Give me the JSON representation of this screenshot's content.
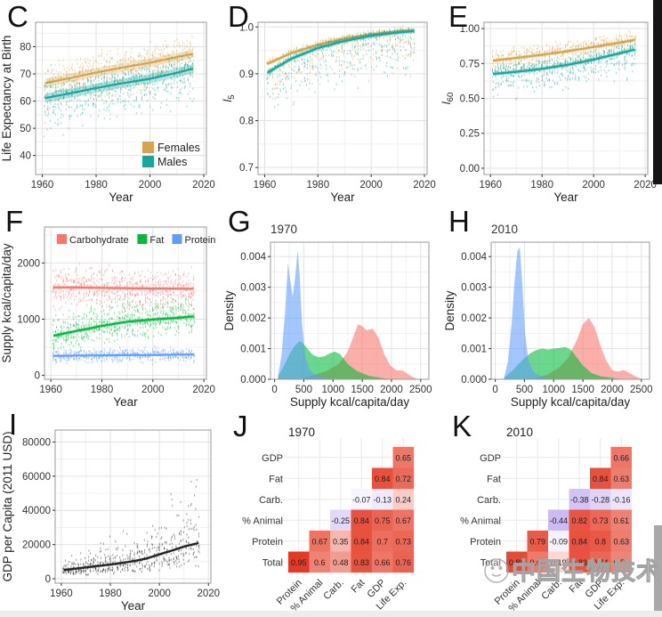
{
  "watermark": {
    "text": "中国生物技术网"
  },
  "chart_data": [
    {
      "panel": "C",
      "type": "trend",
      "xlabel": "Year",
      "ylabel": "Life Expectancy at Birth",
      "xlim": [
        1957.5,
        2021
      ],
      "ylim": [
        33,
        89
      ],
      "xticks": [
        [
          1960,
          "1960"
        ],
        [
          1980,
          "1980"
        ],
        [
          2000,
          "2000"
        ],
        [
          2020,
          "2020"
        ]
      ],
      "yticks": [
        [
          40,
          "40"
        ],
        [
          50,
          "50"
        ],
        [
          60,
          "60"
        ],
        [
          70,
          "70"
        ],
        [
          80,
          "80"
        ]
      ],
      "margin": {
        "l": 40,
        "r": 16,
        "t": 25,
        "b": 34
      },
      "ylx": 12,
      "series": [
        {
          "name": "Females",
          "color": "#d7a44a",
          "x": [
            1961,
            1970,
            1980,
            1990,
            2000,
            2010,
            2016
          ],
          "y": [
            66.6,
            68.4,
            70.5,
            72.4,
            74.1,
            76.2,
            77.4
          ],
          "ribbon": 1.6,
          "scatter": {
            "n": 11,
            "up": 9.5,
            "down": 16
          }
        },
        {
          "name": "Males",
          "color": "#14a79d",
          "x": [
            1961,
            1970,
            1980,
            1990,
            2000,
            2010,
            2016
          ],
          "y": [
            61.1,
            62.8,
            64.8,
            66.6,
            68.2,
            70.4,
            71.9
          ],
          "ribbon": 1.7,
          "scatter": {
            "n": 11,
            "up": 8,
            "down": 19
          }
        }
      ],
      "legend": {
        "pos": "br"
      }
    },
    {
      "panel": "D",
      "type": "trend",
      "xlabel": "Year",
      "ylabel_math": {
        "base": "l",
        "sub": "5"
      },
      "xlim": [
        1957.5,
        2021
      ],
      "ylim": [
        0.685,
        1.01
      ],
      "xticks": [
        [
          1960,
          "1960"
        ],
        [
          1980,
          "1980"
        ],
        [
          2000,
          "2000"
        ],
        [
          2020,
          "2020"
        ]
      ],
      "yticks": [
        [
          0.7,
          "0.7"
        ],
        [
          0.8,
          "0.8"
        ],
        [
          0.9,
          "0.9"
        ],
        [
          1.0,
          "1.0"
        ]
      ],
      "margin": {
        "l": 42,
        "r": 16,
        "t": 25,
        "b": 34
      },
      "ylx": 12,
      "series": [
        {
          "name": "Females",
          "color": "#d7a44a",
          "x": [
            1961,
            1970,
            1980,
            1990,
            2000,
            2010,
            2016
          ],
          "y": [
            0.921,
            0.944,
            0.962,
            0.975,
            0.984,
            0.99,
            0.992
          ],
          "ribbon": 0.004,
          "scatter": {
            "n": 9,
            "up": 0.012,
            "down": 0.11
          }
        },
        {
          "name": "Males",
          "color": "#14a79d",
          "x": [
            1961,
            1970,
            1980,
            1990,
            2000,
            2010,
            2016
          ],
          "y": [
            0.902,
            0.932,
            0.955,
            0.97,
            0.981,
            0.988,
            0.991
          ],
          "ribbon": 0.005,
          "scatter": {
            "n": 9,
            "up": 0.01,
            "down": 0.13
          }
        }
      ]
    },
    {
      "panel": "E",
      "type": "trend",
      "xlabel": "Year",
      "ylabel_math": {
        "base": "l",
        "sub": "60"
      },
      "xlim": [
        1957.5,
        2021
      ],
      "ylim": [
        -0.045,
        1.045
      ],
      "xticks": [
        [
          1960,
          "1960"
        ],
        [
          1980,
          "1980"
        ],
        [
          2000,
          "2000"
        ],
        [
          2020,
          "2020"
        ]
      ],
      "yticks": [
        [
          0,
          "0.00"
        ],
        [
          0.25,
          "0.25"
        ],
        [
          0.5,
          "0.50"
        ],
        [
          0.75,
          "0.75"
        ],
        [
          1,
          "1.00"
        ]
      ],
      "margin": {
        "l": 48,
        "r": 16,
        "t": 25,
        "b": 34
      },
      "ylx": 10,
      "series": [
        {
          "name": "Females",
          "color": "#d7a44a",
          "x": [
            1961,
            1970,
            1980,
            1990,
            2000,
            2010,
            2016
          ],
          "y": [
            0.77,
            0.79,
            0.812,
            0.838,
            0.868,
            0.898,
            0.918
          ],
          "ribbon": 0.013,
          "scatter": {
            "n": 10,
            "up": 0.1,
            "down": 0.17
          }
        },
        {
          "name": "Males",
          "color": "#14a79d",
          "x": [
            1961,
            1970,
            1980,
            1990,
            2000,
            2010,
            2016
          ],
          "y": [
            0.675,
            0.69,
            0.712,
            0.74,
            0.778,
            0.822,
            0.85
          ],
          "ribbon": 0.015,
          "scatter": {
            "n": 10,
            "up": 0.09,
            "down": 0.23
          }
        }
      ]
    },
    {
      "panel": "F",
      "type": "trend",
      "xlabel": "Year",
      "ylabel": "Supply kcal/capita/day",
      "xlim": [
        1957.5,
        2021
      ],
      "ylim": [
        -70,
        2640
      ],
      "xticks": [
        [
          1960,
          "1960"
        ],
        [
          1980,
          "1980"
        ],
        [
          2000,
          "2000"
        ],
        [
          2020,
          "2020"
        ]
      ],
      "yticks": [
        [
          0,
          "0"
        ],
        [
          1000,
          "1000"
        ],
        [
          2000,
          "2000"
        ]
      ],
      "margin": {
        "l": 50,
        "r": 16,
        "t": 25,
        "b": 34
      },
      "ylx": 12,
      "series": [
        {
          "name": "Carbohydrate",
          "color": "#f8766d",
          "x": [
            1961,
            1970,
            1980,
            1990,
            2000,
            2010,
            2016
          ],
          "y": [
            1565,
            1565,
            1558,
            1550,
            1546,
            1544,
            1540
          ],
          "ribbon": 28,
          "scatter": {
            "n": 12,
            "up": 520,
            "down": 520
          }
        },
        {
          "name": "Fat",
          "color": "#00ba38",
          "x": [
            1961,
            1970,
            1980,
            1990,
            2000,
            2010,
            2016
          ],
          "y": [
            705,
            790,
            880,
            955,
            995,
            1025,
            1050
          ],
          "ribbon": 32,
          "scatter": {
            "n": 12,
            "up": 500,
            "down": 400
          }
        },
        {
          "name": "Protein",
          "color": "#619cff",
          "x": [
            1961,
            1970,
            1980,
            1990,
            2000,
            2010,
            2016
          ],
          "y": [
            345,
            352,
            356,
            360,
            363,
            368,
            372
          ],
          "ribbon": 16,
          "scatter": {
            "n": 10,
            "up": 165,
            "down": 165
          }
        }
      ],
      "legend": {
        "pos": "top"
      }
    },
    {
      "panel": "G",
      "type": "density",
      "title": "1970",
      "xlabel": "Supply kcal/capita/day",
      "ylabel": "Density",
      "xlim": [
        -70,
        2640
      ],
      "ylim": [
        0,
        0.00447
      ],
      "xticks": [
        [
          0,
          "0"
        ],
        [
          500,
          "500"
        ],
        [
          1000,
          "1000"
        ],
        [
          1500,
          "1500"
        ],
        [
          2000,
          "2000"
        ],
        [
          2500,
          "2500"
        ]
      ],
      "yticks": [
        [
          0,
          "0.000"
        ],
        [
          0.001,
          "0.001"
        ],
        [
          0.002,
          "0.002"
        ],
        [
          0.003,
          "0.003"
        ],
        [
          0.004,
          "0.004"
        ]
      ],
      "margin": {
        "l": 56,
        "r": 14,
        "t": 42,
        "b": 34
      },
      "ylx": 14,
      "series": [
        {
          "name": "Carbohydrate",
          "color": "#f8766d",
          "x": [
            500,
            700,
            900,
            1100,
            1250,
            1350,
            1430,
            1500,
            1580,
            1680,
            1780,
            1880,
            1980,
            2080,
            2200,
            2320,
            2450
          ],
          "y": [
            5e-05,
            0.00015,
            0.00028,
            0.0005,
            0.0009,
            0.0014,
            0.0018,
            0.00172,
            0.0016,
            0.00165,
            0.00135,
            0.0008,
            0.00045,
            0.0003,
            0.00028,
            0.00012,
            0
          ]
        },
        {
          "name": "Fat",
          "color": "#00ba38",
          "x": [
            60,
            150,
            250,
            350,
            430,
            500,
            560,
            650,
            750,
            850,
            950,
            1030,
            1120,
            1250,
            1400,
            1600,
            1800,
            2000
          ],
          "y": [
            0.0001,
            0.0004,
            0.0008,
            0.0011,
            0.00125,
            0.00115,
            0.001,
            0.0008,
            0.00072,
            0.00075,
            0.00085,
            0.0009,
            0.00082,
            0.0005,
            0.00028,
            0.00012,
            5e-05,
            0
          ]
        },
        {
          "name": "Protein",
          "color": "#619cff",
          "x": [
            60,
            120,
            180,
            230,
            270,
            310,
            350,
            395,
            430,
            470,
            520,
            600,
            700,
            850,
            1000
          ],
          "y": [
            0.0001,
            0.0008,
            0.0022,
            0.0038,
            0.0032,
            0.0027,
            0.0033,
            0.0042,
            0.0034,
            0.0018,
            0.0008,
            0.0003,
            0.00015,
            5e-05,
            0
          ]
        }
      ]
    },
    {
      "panel": "H",
      "type": "density",
      "title": "2010",
      "xlabel": "Supply kcal/capita/day",
      "ylabel": "Density",
      "xlim": [
        -70,
        2640
      ],
      "ylim": [
        0,
        0.00447
      ],
      "xticks": [
        [
          0,
          "0"
        ],
        [
          500,
          "500"
        ],
        [
          1000,
          "1000"
        ],
        [
          1500,
          "1500"
        ],
        [
          2000,
          "2000"
        ],
        [
          2500,
          "2500"
        ]
      ],
      "yticks": [
        [
          0,
          "0.000"
        ],
        [
          0.001,
          "0.001"
        ],
        [
          0.002,
          "0.002"
        ],
        [
          0.003,
          "0.003"
        ],
        [
          0.004,
          "0.004"
        ]
      ],
      "margin": {
        "l": 56,
        "r": 14,
        "t": 42,
        "b": 34
      },
      "ylx": 14,
      "series": [
        {
          "name": "Carbohydrate",
          "color": "#f8766d",
          "x": [
            700,
            900,
            1100,
            1250,
            1400,
            1500,
            1600,
            1700,
            1800,
            1900,
            2000,
            2100,
            2200,
            2300,
            2420,
            2520
          ],
          "y": [
            5e-05,
            0.00015,
            0.0004,
            0.0007,
            0.0013,
            0.0018,
            0.002,
            0.0017,
            0.0011,
            0.0006,
            0.0003,
            0.00025,
            0.0003,
            0.0002,
            8e-05,
            0
          ]
        },
        {
          "name": "Fat",
          "color": "#00ba38",
          "x": [
            150,
            300,
            450,
            600,
            700,
            800,
            900,
            1000,
            1100,
            1200,
            1300,
            1400,
            1500,
            1650,
            1800,
            2000,
            2150
          ],
          "y": [
            5e-05,
            0.0003,
            0.0006,
            0.00085,
            0.00095,
            0.001,
            0.00097,
            0.001,
            0.00102,
            0.00105,
            0.00095,
            0.0007,
            0.00045,
            0.0002,
            0.0001,
            5e-05,
            0
          ]
        },
        {
          "name": "Protein",
          "color": "#619cff",
          "x": [
            150,
            220,
            280,
            330,
            380,
            420,
            460,
            510,
            570,
            650,
            780,
            950
          ],
          "y": [
            5e-05,
            0.0006,
            0.0018,
            0.0032,
            0.0042,
            0.0043,
            0.0032,
            0.0015,
            0.0006,
            0.00025,
            0.0001,
            0
          ]
        }
      ]
    },
    {
      "panel": "I",
      "type": "trend",
      "xlabel": "Year",
      "ylabel": "GDP per Capita (2011 USD)",
      "xlim": [
        1957.5,
        2021
      ],
      "ylim": [
        -2600,
        87000
      ],
      "xticks": [
        [
          1960,
          "1960"
        ],
        [
          1980,
          "1980"
        ],
        [
          2000,
          "2000"
        ],
        [
          2020,
          "2020"
        ]
      ],
      "yticks": [
        [
          0,
          "0"
        ],
        [
          20000,
          "20000"
        ],
        [
          40000,
          "40000"
        ],
        [
          60000,
          "60000"
        ],
        [
          80000,
          "80000"
        ]
      ],
      "margin": {
        "l": 62,
        "r": 18,
        "t": 25,
        "b": 38
      },
      "ylx": 13,
      "series": [
        {
          "name": "GDP",
          "color": "#222222",
          "x": [
            1961,
            1970,
            1980,
            1990,
            1995,
            2000,
            2005,
            2010,
            2016
          ],
          "y": [
            5100,
            6600,
            8300,
            10400,
            11900,
            14300,
            16400,
            18800,
            20900
          ],
          "ribbon": 800,
          "scatter": {
            "n": 10,
            "log": 0.92
          }
        }
      ]
    },
    {
      "panel": "J",
      "type": "heatmap",
      "title": "1970",
      "rows": [
        "GDP",
        "Fat",
        "Carb.",
        "% Animal",
        "Protein",
        "Total"
      ],
      "cols": [
        "Protein",
        "% Animal",
        "Carb.",
        "Fat",
        "GDP",
        "Life Exp."
      ],
      "values": [
        [
          null,
          null,
          null,
          null,
          null,
          "0.65"
        ],
        [
          null,
          null,
          null,
          null,
          "0.84",
          "0.72"
        ],
        [
          null,
          null,
          null,
          "-0.07",
          "-0.13",
          "0.24"
        ],
        [
          null,
          null,
          "-0.25",
          "0.84",
          "0.75",
          "0.67"
        ],
        [
          null,
          "0.67",
          "0.35",
          "0.84",
          "0.7",
          "0.73"
        ],
        [
          "0.95",
          "0.6",
          "0.48",
          "0.83",
          "0.66",
          "0.76"
        ]
      ],
      "palette": {
        "positive": "#e33019",
        "negative": "#8c62e6"
      }
    },
    {
      "panel": "K",
      "type": "heatmap",
      "title": "2010",
      "rows": [
        "GDP",
        "Fat",
        "Carb.",
        "% Animal",
        "Protein",
        "Total"
      ],
      "cols": [
        "Protein",
        "% Animal",
        "Carb.",
        "Fat",
        "GDP",
        "Life Exp."
      ],
      "values": [
        [
          null,
          null,
          null,
          null,
          null,
          "0.66"
        ],
        [
          null,
          null,
          null,
          null,
          "0.84",
          "0.63"
        ],
        [
          null,
          null,
          null,
          "-0.38",
          "-0.28",
          "-0.16"
        ],
        [
          null,
          null,
          "-0.44",
          "0.82",
          "0.73",
          "0.61"
        ],
        [
          null,
          "0.79",
          "-0.09",
          "0.84",
          "0.8",
          "0.63"
        ],
        [
          "0.88",
          "0.64",
          "0.19",
          "0.83",
          "0.74",
          "0.59"
        ]
      ],
      "palette": {
        "positive": "#e33019",
        "negative": "#8c62e6"
      }
    }
  ]
}
